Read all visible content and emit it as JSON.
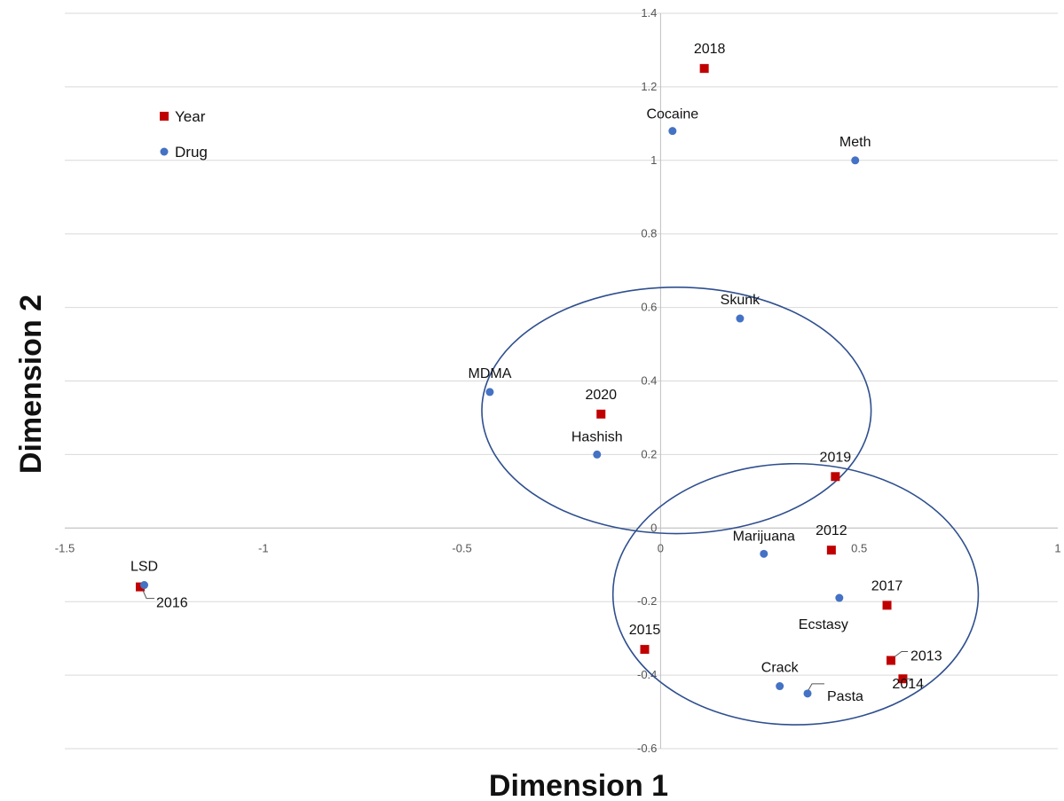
{
  "chart_data": {
    "type": "scatter",
    "title": "",
    "xlabel": "Dimension 1",
    "ylabel": "Dimension 2",
    "xlim": [
      -1.5,
      1
    ],
    "ylim": [
      -0.6,
      1.4
    ],
    "xticks": [
      -1.5,
      -1,
      -0.5,
      0,
      0.5,
      1
    ],
    "xtick_labels": [
      "-1.5",
      "-1",
      "-0.5",
      "0",
      "0.5",
      "1"
    ],
    "yticks": [
      -0.6,
      -0.4,
      -0.2,
      0,
      0.2,
      0.4,
      0.6,
      0.8,
      1,
      1.2,
      1.4
    ],
    "ytick_labels": [
      "-0.6",
      "-0.4",
      "-0.2",
      "0",
      "0.2",
      "0.4",
      "0.6",
      "0.8",
      "1",
      "1.2",
      "1.4"
    ],
    "grid": true,
    "legend_position": "top-left",
    "series": [
      {
        "name": "Year",
        "marker": "square",
        "color": "#c00000",
        "points": [
          {
            "label": "2018",
            "x": 0.11,
            "y": 1.25
          },
          {
            "label": "2020",
            "x": -0.15,
            "y": 0.31
          },
          {
            "label": "2019",
            "x": 0.44,
            "y": 0.14
          },
          {
            "label": "2012",
            "x": 0.43,
            "y": -0.06
          },
          {
            "label": "2017",
            "x": 0.57,
            "y": -0.21
          },
          {
            "label": "2015",
            "x": -0.04,
            "y": -0.33
          },
          {
            "label": "2013",
            "x": 0.58,
            "y": -0.36
          },
          {
            "label": "2014",
            "x": 0.61,
            "y": -0.41
          },
          {
            "label": "2016",
            "x": -1.31,
            "y": -0.16
          }
        ]
      },
      {
        "name": "Drug",
        "marker": "circle",
        "color": "#4472c4",
        "points": [
          {
            "label": "Cocaine",
            "x": 0.03,
            "y": 1.08
          },
          {
            "label": "Meth",
            "x": 0.49,
            "y": 1.0
          },
          {
            "label": "Skunk",
            "x": 0.2,
            "y": 0.57
          },
          {
            "label": "MDMA",
            "x": -0.43,
            "y": 0.37
          },
          {
            "label": "Hashish",
            "x": -0.16,
            "y": 0.2
          },
          {
            "label": "Marijuana",
            "x": 0.26,
            "y": -0.07
          },
          {
            "label": "Ecstasy",
            "x": 0.45,
            "y": -0.19
          },
          {
            "label": "Crack",
            "x": 0.3,
            "y": -0.43
          },
          {
            "label": "Pasta",
            "x": 0.37,
            "y": -0.45
          },
          {
            "label": "LSD",
            "x": -1.3,
            "y": -0.155
          }
        ]
      }
    ],
    "clusters": [
      {
        "cx": 0.04,
        "cy": 0.32,
        "rx": 0.49,
        "ry": 0.335
      },
      {
        "cx": 0.34,
        "cy": -0.18,
        "rx": 0.46,
        "ry": 0.355
      }
    ]
  }
}
